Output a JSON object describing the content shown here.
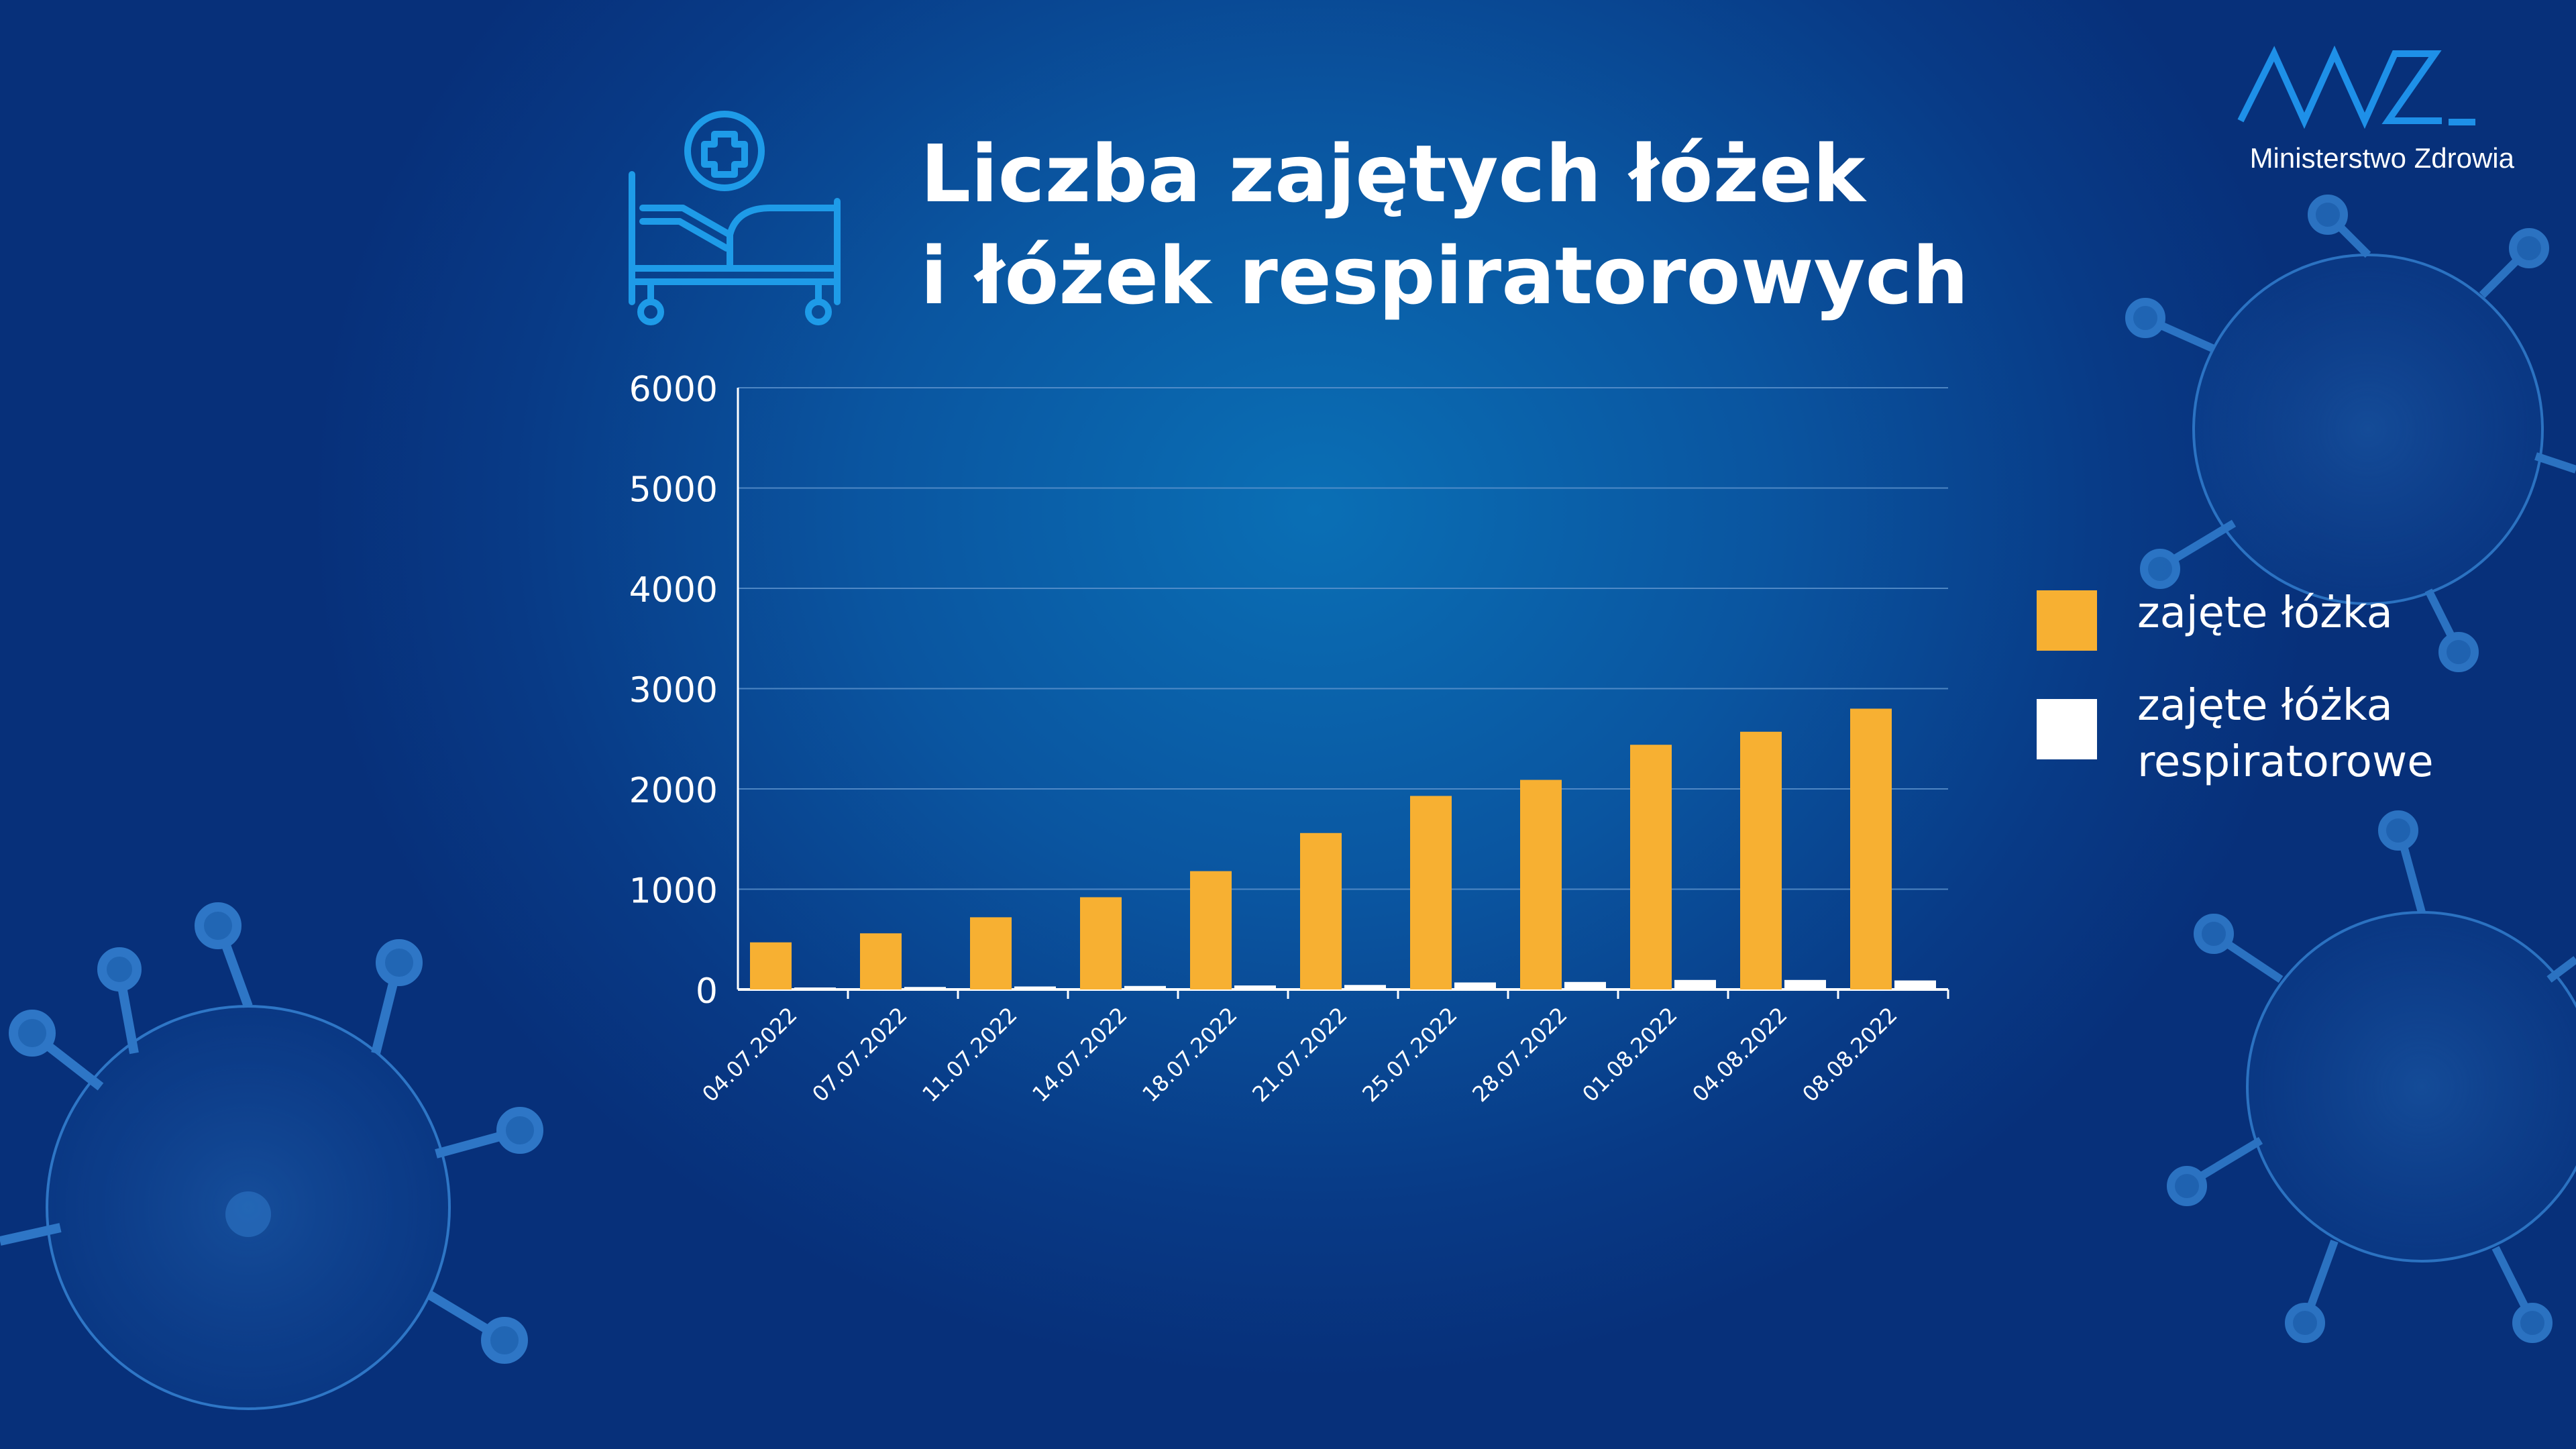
{
  "header": {
    "title_line1": "Liczba zajętych łóżek",
    "title_line2": "i łóżek respiratorowych",
    "icon": "hospital-bed-icon"
  },
  "logo": {
    "text": "Ministerstwo Zdrowia",
    "color": "#1e90e8"
  },
  "colors": {
    "accent": "#f7b032",
    "secondary": "#ffffff",
    "background": "#0a4f9a"
  },
  "chart_data": {
    "type": "bar",
    "categories": [
      "04.07.2022",
      "07.07.2022",
      "11.07.2022",
      "14.07.2022",
      "18.07.2022",
      "21.07.2022",
      "25.07.2022",
      "28.07.2022",
      "01.08.2022",
      "04.08.2022",
      "08.08.2022"
    ],
    "series": [
      {
        "name": "zajęte łóżka",
        "color": "#f7b032",
        "values": [
          470,
          560,
          720,
          920,
          1180,
          1560,
          1930,
          2090,
          2440,
          2570,
          2800
        ]
      },
      {
        "name": "zajęte łóżka respiratorowe",
        "color": "#ffffff",
        "values": [
          20,
          25,
          30,
          35,
          40,
          45,
          70,
          75,
          95,
          95,
          90
        ]
      }
    ],
    "title": "Liczba zajętych łóżek i łóżek respiratorowych",
    "xlabel": "",
    "ylabel": "",
    "ylim": [
      0,
      6000
    ],
    "yticks": [
      0,
      1000,
      2000,
      3000,
      4000,
      5000,
      6000
    ],
    "grid": true,
    "legend": "right"
  }
}
